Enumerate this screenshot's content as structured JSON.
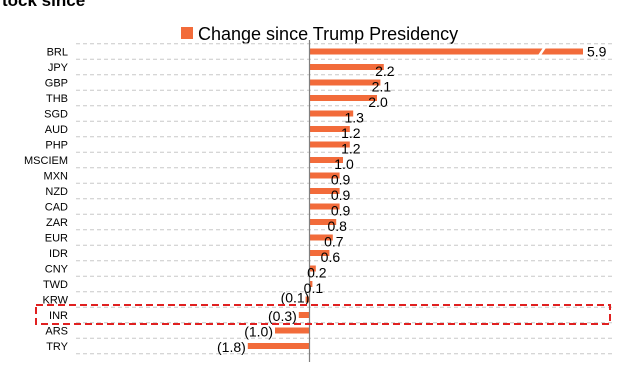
{
  "page": {
    "top_title": "tock since"
  },
  "chart_data": {
    "type": "bar",
    "orientation": "horizontal",
    "categories": [
      "BRL",
      "JPY",
      "GBP",
      "THB",
      "SGD",
      "AUD",
      "PHP",
      "MSCIEM",
      "MXN",
      "NZD",
      "CAD",
      "ZAR",
      "EUR",
      "IDR",
      "CNY",
      "TWD",
      "KRW",
      "INR",
      "ARS",
      "TRY"
    ],
    "series": [
      {
        "name": "Change since Trump Presidency",
        "values": [
          5.9,
          2.2,
          2.1,
          2.0,
          1.3,
          1.2,
          1.2,
          1.0,
          0.9,
          0.9,
          0.9,
          0.8,
          0.7,
          0.6,
          0.2,
          0.1,
          -0.1,
          -0.3,
          -1.0,
          -1.8
        ],
        "labels": [
          "5.9",
          "2.2",
          "2.1",
          "2.0",
          "1.3",
          "1.2",
          "1.2",
          "1.0",
          "0.9",
          "0.9",
          "0.9",
          "0.8",
          "0.7",
          "0.6",
          "0.2",
          "0.1",
          "(0.1)",
          "(0.3)",
          "(1.0)",
          "(1.8)"
        ],
        "color": "#f26b3a"
      }
    ],
    "xlim": [
      -1.8,
      5.9
    ],
    "axis_break": true,
    "gridlines": "horizontal dashed",
    "legend_position": "top-center",
    "highlight": "INR",
    "highlight_color": "#e02020",
    "axis_color": "#7f7f7f"
  }
}
